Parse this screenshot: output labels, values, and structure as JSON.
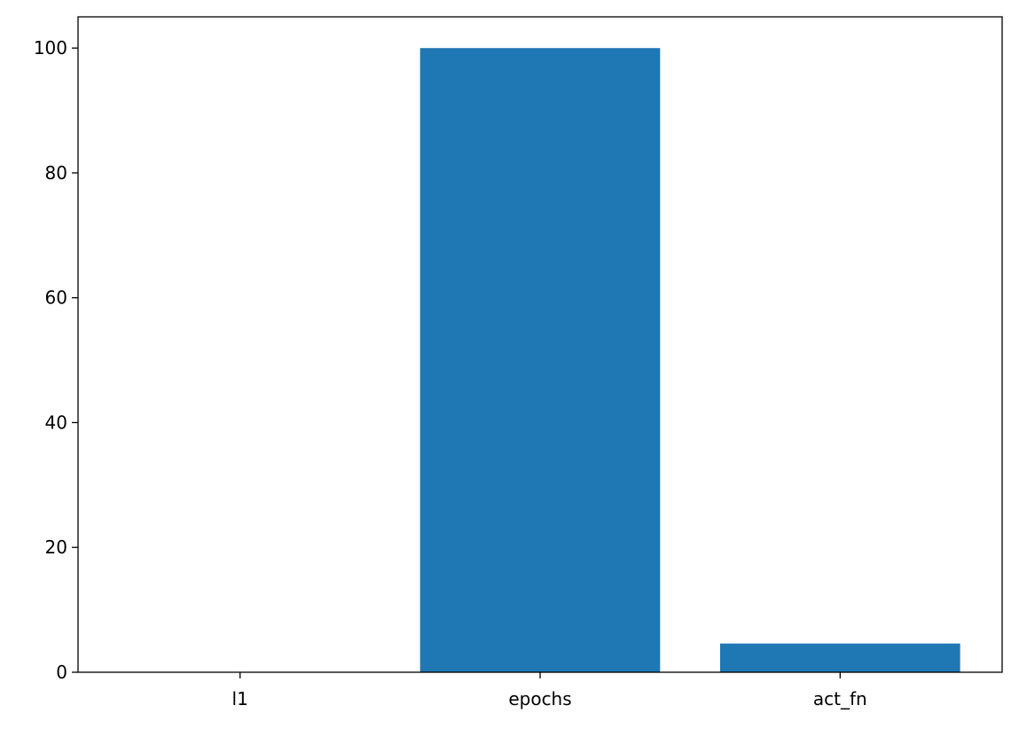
{
  "chart_data": {
    "type": "bar",
    "title": "",
    "xlabel": "",
    "ylabel": "",
    "categories": [
      "l1",
      "epochs",
      "act_fn"
    ],
    "values": [
      0.001,
      100,
      4.6
    ],
    "ylim": [
      0,
      105
    ],
    "yticks": [
      0,
      20,
      40,
      60,
      80,
      100
    ],
    "ytick_labels": [
      "0",
      "20",
      "40",
      "60",
      "80",
      "100"
    ],
    "grid": false,
    "legend": "none",
    "bar_color": "#1f77b4"
  }
}
